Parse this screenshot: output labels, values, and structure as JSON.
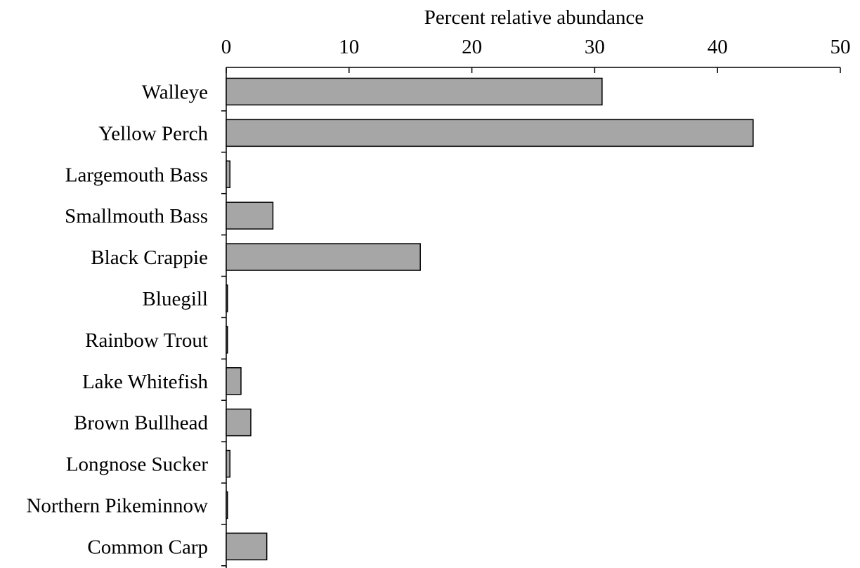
{
  "chart_data": {
    "type": "bar",
    "orientation": "horizontal",
    "xlabel": "Percent relative abundance",
    "xlim": [
      0,
      50
    ],
    "xticks": [
      0,
      10,
      20,
      30,
      40,
      50
    ],
    "x_axis_position": "top",
    "grid": false,
    "bar_color": "#a6a6a6",
    "categories": [
      "Walleye",
      "Yellow Perch",
      "Largemouth Bass",
      "Smallmouth Bass",
      "Black Crappie",
      "Bluegill",
      "Rainbow Trout",
      "Lake Whitefish",
      "Brown Bullhead",
      "Longnose Sucker",
      "Northern Pikeminnow",
      "Common Carp"
    ],
    "values": [
      30.6,
      42.9,
      0.3,
      3.8,
      15.8,
      0.1,
      0.1,
      1.2,
      2.0,
      0.3,
      0.1,
      3.3
    ]
  }
}
